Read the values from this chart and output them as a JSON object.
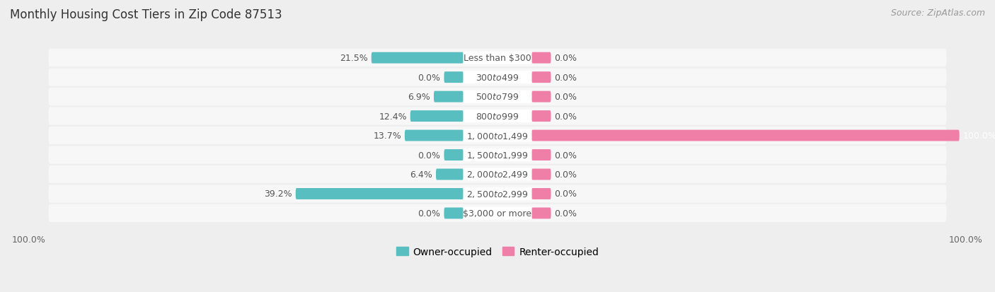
{
  "title": "Monthly Housing Cost Tiers in Zip Code 87513",
  "source": "Source: ZipAtlas.com",
  "categories": [
    "Less than $300",
    "$300 to $499",
    "$500 to $799",
    "$800 to $999",
    "$1,000 to $1,499",
    "$1,500 to $1,999",
    "$2,000 to $2,499",
    "$2,500 to $2,999",
    "$3,000 or more"
  ],
  "owner_values": [
    21.5,
    0.0,
    6.9,
    12.4,
    13.7,
    0.0,
    6.4,
    39.2,
    0.0
  ],
  "renter_values": [
    0.0,
    0.0,
    0.0,
    0.0,
    100.0,
    0.0,
    0.0,
    0.0,
    0.0
  ],
  "owner_color": "#59bec0",
  "renter_color": "#f07fa8",
  "renter_color_full": "#f07fa8",
  "bg_color": "#eeeeee",
  "row_bg_color": "#f7f7f7",
  "label_pill_color": "#ffffff",
  "text_color": "#555555",
  "white_text": "#ffffff",
  "max_val": 100.0,
  "min_stub": 4.5,
  "title_fontsize": 12,
  "label_fontsize": 9,
  "source_fontsize": 9,
  "value_fontsize": 9,
  "axis_label_left": "100.0%",
  "axis_label_right": "100.0%"
}
